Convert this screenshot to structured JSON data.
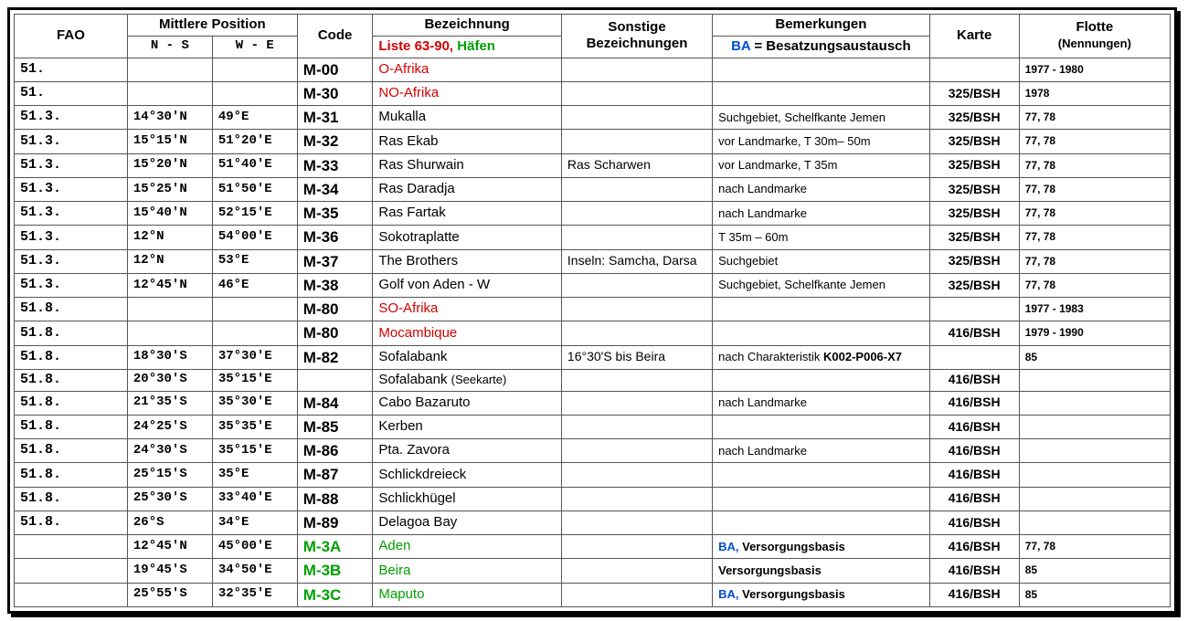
{
  "header": {
    "fao": "FAO",
    "mittlere": "Mittlere Position",
    "ns": "N - S",
    "we": "W - E",
    "code": "Code",
    "bezeichnung": "Bezeichnung",
    "sub_liste_pre": "Liste 63-90,",
    "sub_liste_green": " Häfen",
    "sonstige1": "Sonstige",
    "sonstige2": "Bezeichnungen",
    "bemerkungen": "Bemerkungen",
    "sub_ba_blue": "BA",
    "sub_ba_rest": " = Besatzungsaustausch",
    "karte": "Karte",
    "flotte1": "Flotte",
    "flotte2": "(Nennungen)"
  },
  "rows": [
    {
      "fao": "51.",
      "ns": "",
      "we": "",
      "code": "M-00",
      "code_color": "#000",
      "bez": [
        {
          "t": "O-Afrika",
          "c": "#d40000"
        }
      ],
      "son": "",
      "bem": [],
      "karte": "",
      "fl": "1977 - 1980"
    },
    {
      "fao": "51.",
      "ns": "",
      "we": "",
      "code": "M-30",
      "code_color": "#000",
      "bez": [
        {
          "t": "NO-Afrika",
          "c": "#d40000"
        }
      ],
      "son": "",
      "bem": [],
      "karte": "325/BSH",
      "fl": "1978"
    },
    {
      "fao": "51.3.",
      "ns": "14°30'N",
      "we": "49°E",
      "code": "M-31",
      "code_color": "#000",
      "bez": [
        {
          "t": "Mukalla",
          "c": "#000"
        }
      ],
      "son": "",
      "bem": [
        {
          "t": "Suchgebiet, Schelfkante Jemen"
        }
      ],
      "karte": "325/BSH",
      "fl": "77, 78"
    },
    {
      "fao": "51.3.",
      "ns": "15°15'N",
      "we": "51°20'E",
      "code": "M-32",
      "code_color": "#000",
      "bez": [
        {
          "t": "Ras Ekab",
          "c": "#000"
        }
      ],
      "son": "",
      "bem": [
        {
          "t": "vor Landmarke, T 30m– 50m"
        }
      ],
      "karte": "325/BSH",
      "fl": "77, 78"
    },
    {
      "fao": "51.3.",
      "ns": "15°20'N",
      "we": "51°40'E",
      "code": "M-33",
      "code_color": "#000",
      "bez": [
        {
          "t": "Ras Shurwain",
          "c": "#000"
        }
      ],
      "son": "Ras Scharwen",
      "bem": [
        {
          "t": "vor Landmarke, T 35m"
        }
      ],
      "karte": "325/BSH",
      "fl": "77, 78"
    },
    {
      "fao": "51.3.",
      "ns": "15°25'N",
      "we": "51°50'E",
      "code": "M-34",
      "code_color": "#000",
      "bez": [
        {
          "t": "Ras Daradja",
          "c": "#000"
        }
      ],
      "son": "",
      "bem": [
        {
          "t": "nach Landmarke"
        }
      ],
      "karte": "325/BSH",
      "fl": "77, 78"
    },
    {
      "fao": "51.3.",
      "ns": "15°40'N",
      "we": "52°15'E",
      "code": "M-35",
      "code_color": "#000",
      "bez": [
        {
          "t": "Ras Fartak",
          "c": "#000"
        }
      ],
      "son": "",
      "bem": [
        {
          "t": "nach Landmarke"
        }
      ],
      "karte": "325/BSH",
      "fl": "77, 78"
    },
    {
      "fao": "51.3.",
      "ns": "12°N",
      "we": "54°00'E",
      "code": "M-36",
      "code_color": "#000",
      "bez": [
        {
          "t": "Sokotraplatte",
          "c": "#000"
        }
      ],
      "son": "",
      "bem": [
        {
          "t": "T 35m – 60m"
        }
      ],
      "karte": "325/BSH",
      "fl": "77, 78"
    },
    {
      "fao": "51.3.",
      "ns": "12°N",
      "we": "53°E",
      "code": "M-37",
      "code_color": "#000",
      "bez": [
        {
          "t": "The Brothers",
          "c": "#000"
        }
      ],
      "son": "Inseln: Samcha, Darsa",
      "bem": [
        {
          "t": "Suchgebiet"
        }
      ],
      "karte": "325/BSH",
      "fl": "77, 78"
    },
    {
      "fao": "51.3.",
      "ns": "12°45'N",
      "we": "46°E",
      "code": "M-38",
      "code_color": "#000",
      "bez": [
        {
          "t": "Golf von Aden - W",
          "c": "#000"
        }
      ],
      "son": "",
      "bem": [
        {
          "t": "Suchgebiet, Schelfkante Jemen"
        }
      ],
      "karte": "325/BSH",
      "fl": "77, 78"
    },
    {
      "fao": "51.8.",
      "ns": "",
      "we": "",
      "code": "M-80",
      "code_color": "#000",
      "bez": [
        {
          "t": "SO-Afrika",
          "c": "#d40000"
        }
      ],
      "son": "",
      "bem": [],
      "karte": "",
      "fl": "1977 - 1983"
    },
    {
      "fao": "51.8.",
      "ns": "",
      "we": "",
      "code": "M-80",
      "code_color": "#000",
      "bez": [
        {
          "t": "Mocambique",
          "c": "#d40000"
        }
      ],
      "son": "",
      "bem": [],
      "karte": "416/BSH",
      "fl": "1979 - 1990"
    },
    {
      "fao": "51.8.",
      "ns": "18°30'S",
      "we": "37°30'E",
      "code": "M-82",
      "code_color": "#000",
      "bez": [
        {
          "t": "Sofalabank",
          "c": "#000"
        }
      ],
      "son": "16°30'S bis Beira",
      "bem": [
        {
          "t": "nach Charakteristik "
        },
        {
          "t": "K002-P006-X7",
          "b": true
        }
      ],
      "karte": "",
      "fl": "85"
    },
    {
      "fao": "51.8.",
      "ns": "20°30'S",
      "we": "35°15'E",
      "code": "",
      "code_color": "#000",
      "bez": [
        {
          "t": "Sofalabank ",
          "c": "#000"
        },
        {
          "t": "(Seekarte)",
          "c": "#000",
          "small": true
        }
      ],
      "son": "",
      "bem": [],
      "karte": "416/BSH",
      "fl": ""
    },
    {
      "fao": "51.8.",
      "ns": "21°35'S",
      "we": "35°30'E",
      "code": "M-84",
      "code_color": "#000",
      "bez": [
        {
          "t": "Cabo Bazaruto",
          "c": "#000"
        }
      ],
      "son": "",
      "bem": [
        {
          "t": "nach Landmarke"
        }
      ],
      "karte": "416/BSH",
      "fl": ""
    },
    {
      "fao": "51.8.",
      "ns": "24°25'S",
      "we": "35°35'E",
      "code": "M-85",
      "code_color": "#000",
      "bez": [
        {
          "t": "Kerben",
          "c": "#000"
        }
      ],
      "son": "",
      "bem": [],
      "karte": "416/BSH",
      "fl": ""
    },
    {
      "fao": "51.8.",
      "ns": "24°30'S",
      "we": "35°15'E",
      "code": "M-86",
      "code_color": "#000",
      "bez": [
        {
          "t": "Pta. Zavora",
          "c": "#000"
        }
      ],
      "son": "",
      "bem": [
        {
          "t": "nach Landmarke"
        }
      ],
      "karte": "416/BSH",
      "fl": ""
    },
    {
      "fao": "51.8.",
      "ns": "25°15'S",
      "we": "35°E",
      "code": "M-87",
      "code_color": "#000",
      "bez": [
        {
          "t": "Schlickdreieck",
          "c": "#000"
        }
      ],
      "son": "",
      "bem": [],
      "karte": "416/BSH",
      "fl": ""
    },
    {
      "fao": "51.8.",
      "ns": "25°30'S",
      "we": "33°40'E",
      "code": "M-88",
      "code_color": "#000",
      "bez": [
        {
          "t": "Schlickhügel",
          "c": "#000"
        }
      ],
      "son": "",
      "bem": [],
      "karte": "416/BSH",
      "fl": ""
    },
    {
      "fao": "51.8.",
      "ns": "26°S",
      "we": "34°E",
      "code": "M-89",
      "code_color": "#000",
      "bez": [
        {
          "t": "Delagoa Bay",
          "c": "#000"
        }
      ],
      "son": "",
      "bem": [],
      "karte": "416/BSH",
      "fl": ""
    },
    {
      "fao": "",
      "ns": "12°45'N",
      "we": "45°00'E",
      "code": "M-3A",
      "code_color": "#00a000",
      "bez": [
        {
          "t": "Aden",
          "c": "#00a000"
        }
      ],
      "son": "",
      "bem": [
        {
          "t": "BA,",
          "c": "#0050d0",
          "b": true
        },
        {
          "t": " Versorgungsbasis",
          "b": true
        }
      ],
      "karte": "416/BSH",
      "fl": "77, 78"
    },
    {
      "fao": "",
      "ns": "19°45'S",
      "we": "34°50'E",
      "code": "M-3B",
      "code_color": "#00a000",
      "bez": [
        {
          "t": "Beira",
          "c": "#00a000"
        }
      ],
      "son": "",
      "bem": [
        {
          "t": "Versorgungsbasis",
          "b": true
        }
      ],
      "karte": "416/BSH",
      "fl": "85"
    },
    {
      "fao": "",
      "ns": "25°55'S",
      "we": "32°35'E",
      "code": "M-3C",
      "code_color": "#00a000",
      "bez": [
        {
          "t": "Maputo",
          "c": "#00a000"
        }
      ],
      "son": "",
      "bem": [
        {
          "t": "BA,",
          "c": "#0050d0",
          "b": true
        },
        {
          "t": " Versorgungsbasis",
          "b": true
        }
      ],
      "karte": "416/BSH",
      "fl": "85"
    }
  ]
}
